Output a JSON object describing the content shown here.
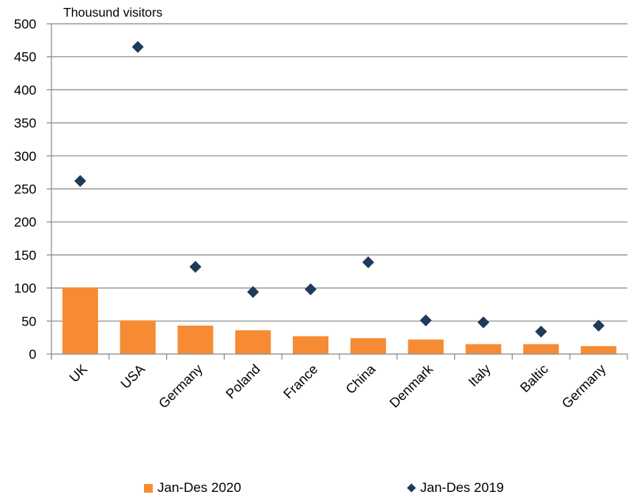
{
  "chart_data": {
    "type": "bar",
    "ylabel": "Thousund visitors",
    "ylim": [
      0,
      500
    ],
    "yticks": [
      0,
      50,
      100,
      150,
      200,
      250,
      300,
      350,
      400,
      450,
      500
    ],
    "grid": true,
    "legend_position": "bottom",
    "categories": [
      "UK",
      "USA",
      "Germany",
      "Poland",
      "France",
      "China",
      "Denmark",
      "Italy",
      "Baltic",
      "Germany"
    ],
    "series": [
      {
        "name": "Jan-Des 2020",
        "kind": "bar",
        "color": "#F68B33",
        "values": [
          101,
          51,
          43,
          36,
          27,
          24,
          22,
          15,
          15,
          12
        ]
      },
      {
        "name": "Jan-Des 2019",
        "kind": "marker",
        "color": "#1F3A5A",
        "values": [
          262,
          465,
          132,
          94,
          98,
          139,
          51,
          48,
          34,
          43
        ]
      }
    ]
  }
}
